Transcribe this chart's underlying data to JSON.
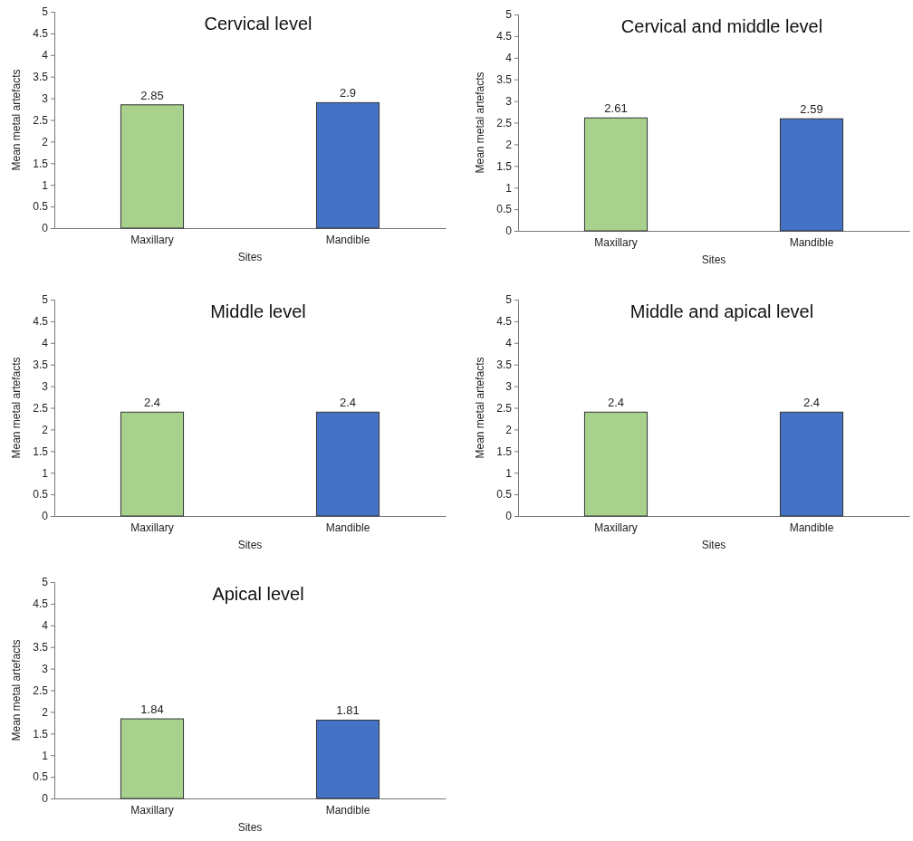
{
  "chart_data": [
    {
      "type": "bar",
      "title": "Cervical level",
      "xlabel": "Sites",
      "ylabel": "Mean metal artefacts",
      "categories": [
        "Maxillary",
        "Mandible"
      ],
      "values": [
        2.85,
        2.9
      ],
      "colors": [
        "#a9d18e",
        "#4472c4"
      ],
      "ylim": [
        0,
        5
      ],
      "yticks": [
        0,
        0.5,
        1,
        1.5,
        2,
        2.5,
        3,
        3.5,
        4,
        4.5,
        5
      ],
      "data_labels": true,
      "grid": false
    },
    {
      "type": "bar",
      "title": "Cervical and middle level",
      "xlabel": "Sites",
      "ylabel": "Mean metal artefacts",
      "categories": [
        "Maxillary",
        "Mandible"
      ],
      "values": [
        2.61,
        2.59
      ],
      "colors": [
        "#a9d18e",
        "#4472c4"
      ],
      "ylim": [
        0,
        5
      ],
      "yticks": [
        0,
        0.5,
        1,
        1.5,
        2,
        2.5,
        3,
        3.5,
        4,
        4.5,
        5
      ],
      "data_labels": true,
      "grid": false
    },
    {
      "type": "bar",
      "title": "Middle level",
      "xlabel": "Sites",
      "ylabel": "Mean metal artefacts",
      "categories": [
        "Maxillary",
        "Mandible"
      ],
      "values": [
        2.4,
        2.4
      ],
      "colors": [
        "#a9d18e",
        "#4472c4"
      ],
      "ylim": [
        0,
        5
      ],
      "yticks": [
        0,
        0.5,
        1,
        1.5,
        2,
        2.5,
        3,
        3.5,
        4,
        4.5,
        5
      ],
      "data_labels": true,
      "grid": false
    },
    {
      "type": "bar",
      "title": "Middle and apical level",
      "xlabel": "Sites",
      "ylabel": "Mean metal artefacts",
      "categories": [
        "Maxillary",
        "Mandible"
      ],
      "values": [
        2.4,
        2.4
      ],
      "colors": [
        "#a9d18e",
        "#4472c4"
      ],
      "ylim": [
        0,
        5
      ],
      "yticks": [
        0,
        0.5,
        1,
        1.5,
        2,
        2.5,
        3,
        3.5,
        4,
        4.5,
        5
      ],
      "data_labels": true,
      "grid": false
    },
    {
      "type": "bar",
      "title": "Apical level",
      "xlabel": "Sites",
      "ylabel": "Mean metal artefacts",
      "categories": [
        "Maxillary",
        "Mandible"
      ],
      "values": [
        1.84,
        1.81
      ],
      "colors": [
        "#a9d18e",
        "#4472c4"
      ],
      "ylim": [
        0,
        5
      ],
      "yticks": [
        0,
        0.5,
        1,
        1.5,
        2,
        2.5,
        3,
        3.5,
        4,
        4.5,
        5
      ],
      "data_labels": true,
      "grid": false
    }
  ]
}
